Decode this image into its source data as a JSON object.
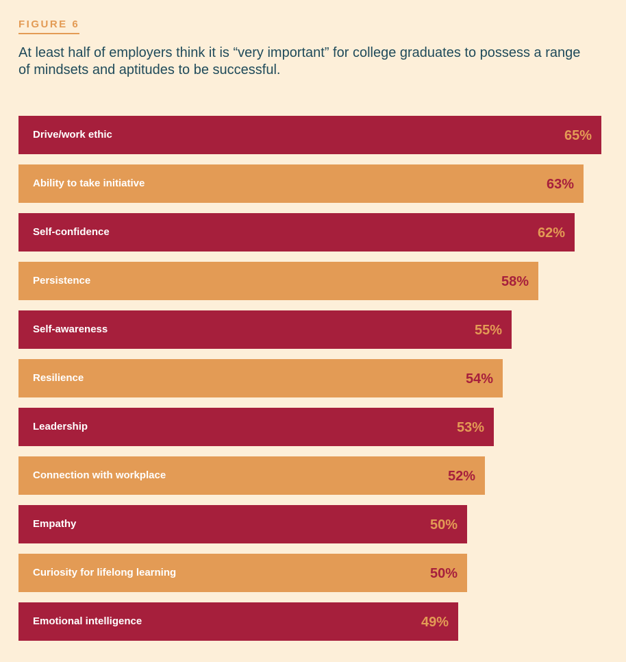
{
  "figure_label": "FIGURE 6",
  "title": "At least half of employers think it is “very important” for college graduates to possess a range of mindsets and aptitudes to be successful.",
  "colors": {
    "background": "#fdefd9",
    "crimson": "#a61f3c",
    "orange": "#e39b55",
    "title_text": "#1f4a5a"
  },
  "chart_data": {
    "type": "bar",
    "orientation": "horizontal",
    "categories": [
      "Drive/work ethic",
      "Ability to take initiative",
      "Self-confidence",
      "Persistence",
      "Self-awareness",
      "Resilience",
      "Leadership",
      "Connection with workplace",
      "Empathy",
      "Curiosity for lifelong learning",
      "Emotional intelligence"
    ],
    "values": [
      65,
      63,
      62,
      58,
      55,
      54,
      53,
      52,
      50,
      50,
      49
    ],
    "value_labels": [
      "65%",
      "63%",
      "62%",
      "58%",
      "55%",
      "54%",
      "53%",
      "52%",
      "50%",
      "50%",
      "49%"
    ],
    "unit": "%",
    "bar_colors": [
      "#a61f3c",
      "#e39b55",
      "#a61f3c",
      "#e39b55",
      "#a61f3c",
      "#e39b55",
      "#a61f3c",
      "#e39b55",
      "#a61f3c",
      "#e39b55",
      "#a61f3c"
    ],
    "value_label_colors": [
      "#e39b55",
      "#a61f3c",
      "#e39b55",
      "#a61f3c",
      "#e39b55",
      "#a61f3c",
      "#e39b55",
      "#a61f3c",
      "#e39b55",
      "#a61f3c",
      "#e39b55"
    ],
    "grid": false,
    "legend": "none"
  }
}
